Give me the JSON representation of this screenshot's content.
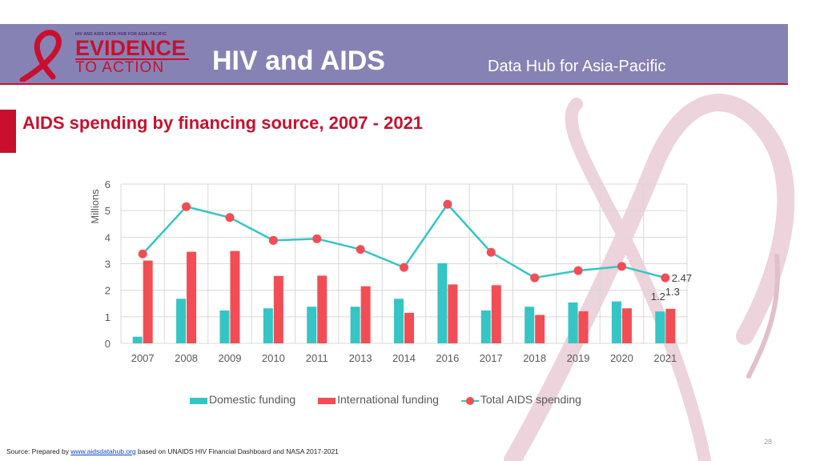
{
  "header": {
    "logo_tagline": "HIV AND AIDS DATA HUB FOR ASIA-PACIFIC",
    "logo_line1": "EVIDENCE",
    "logo_line2": "TO ACTION",
    "title": "HIV and AIDS",
    "subtitle": "Data Hub for Asia-Pacific"
  },
  "slide_title": "AIDS spending by financing source, 2007 - 2021",
  "chart_data": {
    "type": "bar",
    "title": "AIDS spending by financing source, 2007 - 2021",
    "ylabel": "Millions",
    "xlabel": "",
    "ylim": [
      0,
      6
    ],
    "yticks": [
      "0",
      "1",
      "2",
      "3",
      "4",
      "5",
      "6"
    ],
    "grid": true,
    "legend_position": "bottom",
    "categories": [
      "2007",
      "2008",
      "2009",
      "2010",
      "2011",
      "2013",
      "2014",
      "2016",
      "2017",
      "2018",
      "2019",
      "2020",
      "2021"
    ],
    "series": [
      {
        "name": "Domestic funding",
        "type": "bar",
        "color": "#35c5c4",
        "values": [
          0.25,
          1.68,
          1.24,
          1.32,
          1.38,
          1.38,
          1.68,
          3.02,
          1.24,
          1.38,
          1.54,
          1.58,
          1.2
        ]
      },
      {
        "name": "International funding",
        "type": "bar",
        "color": "#f24d55",
        "values": [
          3.12,
          3.45,
          3.48,
          2.54,
          2.55,
          2.15,
          1.15,
          2.22,
          2.19,
          1.07,
          1.21,
          1.32,
          1.3
        ]
      },
      {
        "name": "Total AIDS spending",
        "type": "line",
        "line_color": "#35c5c4",
        "marker_color": "#f24d55",
        "values": [
          3.37,
          5.15,
          4.74,
          3.88,
          3.94,
          3.54,
          2.86,
          5.24,
          3.43,
          2.47,
          2.74,
          2.9,
          2.47
        ]
      }
    ],
    "data_labels": [
      {
        "series": "Domestic funding",
        "category": "2021",
        "text": "1.2"
      },
      {
        "series": "International funding",
        "category": "2021",
        "text": "1.3"
      },
      {
        "series": "Total AIDS spending",
        "category": "2021",
        "text": "2.47"
      }
    ]
  },
  "legend": {
    "domestic": "Domestic funding",
    "international": "International funding",
    "total": "Total AIDS spending"
  },
  "page_number": "28",
  "source": {
    "prefix": "Source: Prepared by",
    "link_text": "www.aidsdatahub.org",
    "suffix": "based on UNAIDS HIV Financial Dashboard and NASA 2017-2021"
  },
  "colors": {
    "banner": "#8782b4",
    "accent_red": "#c8102e",
    "domestic": "#35c5c4",
    "international": "#f24d55"
  }
}
